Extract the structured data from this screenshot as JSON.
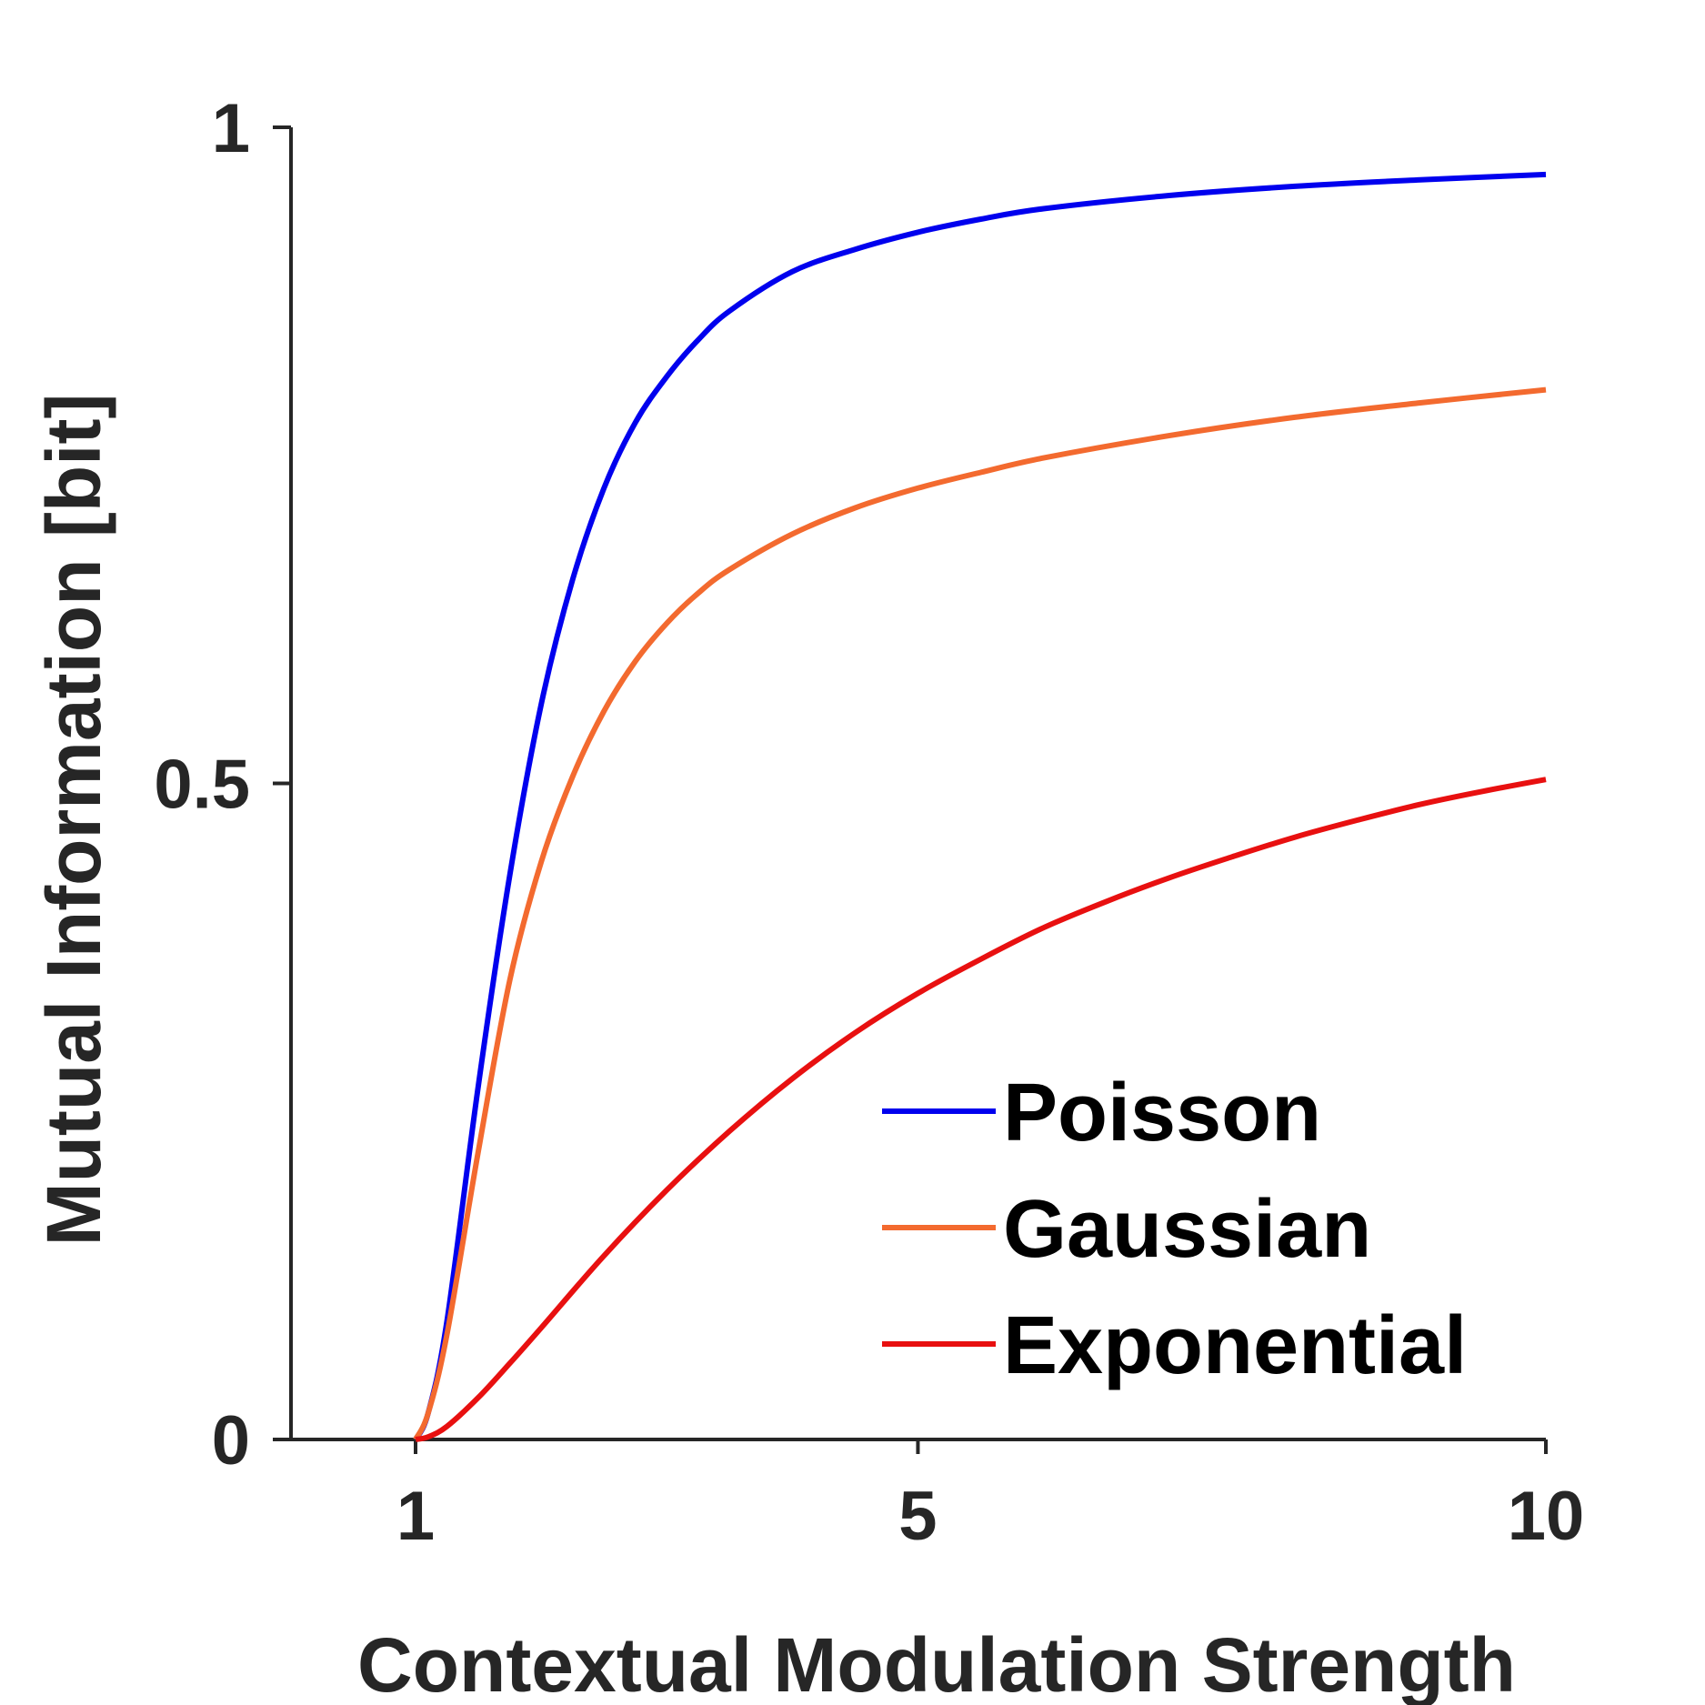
{
  "chart_data": {
    "type": "line",
    "xlabel": "Contextual Modulation Strength",
    "ylabel": "Mutual Information [bit]",
    "xlim": [
      0,
      10
    ],
    "ylim": [
      0,
      1
    ],
    "xticks": [
      1,
      5,
      10
    ],
    "xtick_labels": [
      "1",
      "5",
      "10"
    ],
    "yticks": [
      0,
      0.5,
      1
    ],
    "ytick_labels": [
      "0",
      "0.5",
      "1"
    ],
    "grid": false,
    "legend_position": "bottom-right",
    "series": [
      {
        "name": "Poisson",
        "color": "#0000ee",
        "x": [
          1,
          1.1,
          1.25,
          1.5,
          1.75,
          2,
          2.25,
          2.5,
          2.75,
          3,
          3.25,
          3.5,
          4,
          4.5,
          5,
          5.5,
          6,
          7,
          8,
          9,
          10
        ],
        "y": [
          0,
          0.02,
          0.09,
          0.27,
          0.43,
          0.56,
          0.655,
          0.725,
          0.775,
          0.81,
          0.838,
          0.86,
          0.89,
          0.907,
          0.92,
          0.93,
          0.938,
          0.948,
          0.955,
          0.96,
          0.964
        ]
      },
      {
        "name": "Gaussian",
        "color": "#f36a2f",
        "x": [
          1,
          1.1,
          1.25,
          1.5,
          1.75,
          2,
          2.25,
          2.5,
          2.75,
          3,
          3.25,
          3.5,
          4,
          4.5,
          5,
          5.5,
          6,
          7,
          8,
          9,
          10
        ],
        "y": [
          0,
          0.02,
          0.08,
          0.22,
          0.35,
          0.44,
          0.505,
          0.555,
          0.593,
          0.622,
          0.645,
          0.663,
          0.69,
          0.71,
          0.725,
          0.737,
          0.748,
          0.765,
          0.779,
          0.79,
          0.8
        ]
      },
      {
        "name": "Exponential",
        "color": "#e81010",
        "x": [
          1,
          1.1,
          1.25,
          1.5,
          1.75,
          2,
          2.5,
          3,
          3.5,
          4,
          4.5,
          5,
          5.5,
          6,
          6.5,
          7,
          7.5,
          8,
          8.5,
          9,
          9.5,
          10
        ],
        "y": [
          0,
          0.002,
          0.01,
          0.032,
          0.058,
          0.085,
          0.14,
          0.19,
          0.235,
          0.275,
          0.31,
          0.34,
          0.366,
          0.39,
          0.41,
          0.428,
          0.444,
          0.459,
          0.472,
          0.484,
          0.494,
          0.503
        ]
      }
    ]
  }
}
